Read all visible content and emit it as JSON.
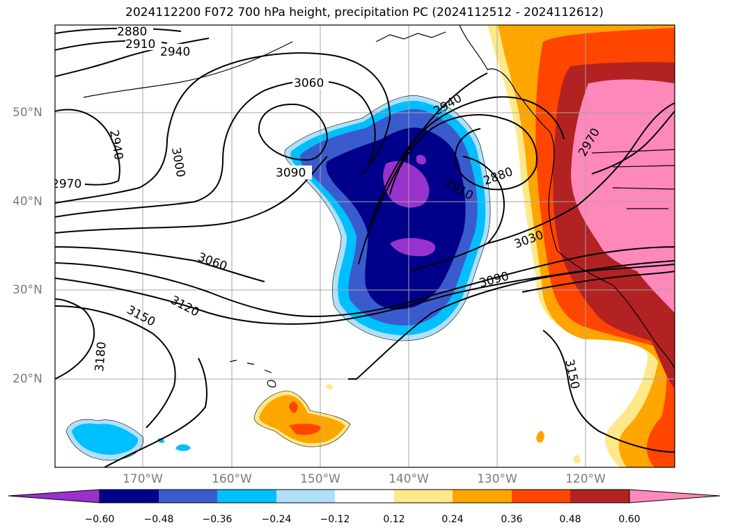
{
  "title": "2024112200 F072 700 hPa height, precipitation PC (2024112512 - 2024112612)",
  "lat_labels": [
    "50°N",
    "40°N",
    "30°N",
    "20°N"
  ],
  "lon_labels": [
    "170°W",
    "160°W",
    "150°W",
    "140°W",
    "130°W",
    "120°W"
  ],
  "contour_labels": [
    "2880",
    "2910",
    "2940",
    "2940",
    "2970",
    "3000",
    "3060",
    "3090",
    "3060",
    "3120",
    "3150",
    "3180",
    "2940",
    "2880",
    "2910",
    "3030",
    "3090",
    "2970",
    "3150"
  ],
  "colorbar": {
    "ticks": [
      "−0.60",
      "−0.48",
      "−0.36",
      "−0.24",
      "−0.12",
      "0.12",
      "0.24",
      "0.36",
      "0.48",
      "0.60"
    ],
    "colors": [
      "#9932cc",
      "#00008b",
      "#3a5bcd",
      "#00bfff",
      "#b0e0fa",
      "#ffffff",
      "#ffe88a",
      "#ffa500",
      "#ff4500",
      "#b22222",
      "#ff88bb",
      "#ff88bb"
    ]
  }
}
